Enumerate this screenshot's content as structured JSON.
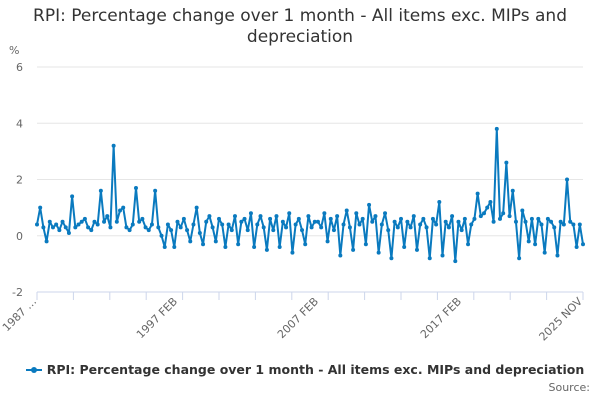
{
  "title": "RPI: Percentage change over 1 month - All items exc. MIPs and depreciation",
  "unit_label": "%",
  "legend": {
    "label": "RPI: Percentage change over 1 month - All items exc. MIPs and depreciation",
    "color": "#0a7abf"
  },
  "source_label": "Source:",
  "chart_data": {
    "type": "line",
    "title": "RPI: Percentage change over 1 month - All items exc. MIPs and depreciation",
    "xlabel": "",
    "ylabel": "%",
    "ylim": [
      -2,
      6
    ],
    "y_ticks": [
      -2,
      0,
      2,
      4,
      6
    ],
    "x_tick_labels": [
      "1987 …",
      "1997 FEB",
      "2007 FEB",
      "2017 FEB",
      "2025 NOV"
    ],
    "grid": true,
    "legend_position": "bottom",
    "series": [
      {
        "name": "RPI: Percentage change over 1 month - All items exc. MIPs and depreciation",
        "color": "#0a7abf",
        "x_start": "1987 JAN",
        "x_end": "2025 NOV",
        "approximate_values_by_period": [
          {
            "period": "1987-1989",
            "values": [
              0.4,
              1.0,
              0.3,
              -0.2,
              0.5,
              0.3,
              0.4,
              0.2,
              0.5,
              0.3,
              0.1,
              1.4,
              0.3,
              0.4,
              0.5,
              0.6,
              0.3,
              0.2,
              0.5,
              0.4
            ]
          },
          {
            "period": "1990-1992",
            "values": [
              1.6,
              0.5,
              0.7,
              0.3,
              3.2,
              0.5,
              0.9,
              1.0,
              0.3,
              0.2,
              0.4,
              1.7,
              0.5,
              0.6,
              0.3,
              0.2,
              0.4,
              1.6,
              0.3,
              0.0
            ]
          },
          {
            "period": "1993-1996",
            "values": [
              -0.4,
              0.4,
              0.2,
              -0.4,
              0.5,
              0.3,
              0.6,
              0.2,
              -0.2,
              0.4,
              1.0,
              0.1,
              -0.3,
              0.5,
              0.7,
              0.3,
              -0.2,
              0.6,
              0.4,
              -0.4
            ]
          },
          {
            "period": "1997-2006",
            "values": [
              0.4,
              0.2,
              0.7,
              -0.3,
              0.5,
              0.6,
              0.2,
              0.8,
              -0.4,
              0.4,
              0.7,
              0.3,
              -0.5,
              0.6,
              0.2,
              0.7,
              -0.4,
              0.5,
              0.3,
              0.8,
              -0.6,
              0.4,
              0.6,
              0.2,
              -0.3,
              0.7,
              0.3,
              0.5
            ]
          },
          {
            "period": "2007-2016",
            "values": [
              0.5,
              0.3,
              0.8,
              -0.2,
              0.6,
              0.2,
              0.7,
              -0.7,
              0.4,
              0.9,
              0.3,
              -0.5,
              0.8,
              0.4,
              0.6,
              -0.3,
              1.1,
              0.5,
              0.7,
              -0.6,
              0.4,
              0.8,
              0.2,
              -0.8,
              0.5,
              0.3,
              0.6,
              -0.4
            ]
          },
          {
            "period": "2017-2020",
            "values": [
              0.5,
              0.3,
              0.7,
              -0.5,
              0.4,
              0.6,
              0.3,
              -0.8,
              0.6,
              0.4,
              1.2,
              -0.7,
              0.5,
              0.3,
              0.7,
              -0.9,
              0.5,
              0.2,
              0.6,
              -0.3
            ]
          },
          {
            "period": "2021-2023",
            "values": [
              0.4,
              0.6,
              1.5,
              0.7,
              0.8,
              1.0,
              1.2,
              0.5,
              3.8,
              0.6,
              0.8,
              2.6,
              0.7,
              1.6,
              0.5,
              -0.8,
              0.9,
              0.5,
              -0.2,
              0.6
            ]
          },
          {
            "period": "2024-2025",
            "values": [
              -0.3,
              0.6,
              0.4,
              -0.6,
              0.6,
              0.5,
              0.3,
              -0.7,
              0.5,
              0.4,
              2.0,
              0.5,
              0.4,
              -0.4,
              0.4,
              -0.3
            ]
          }
        ]
      }
    ]
  }
}
